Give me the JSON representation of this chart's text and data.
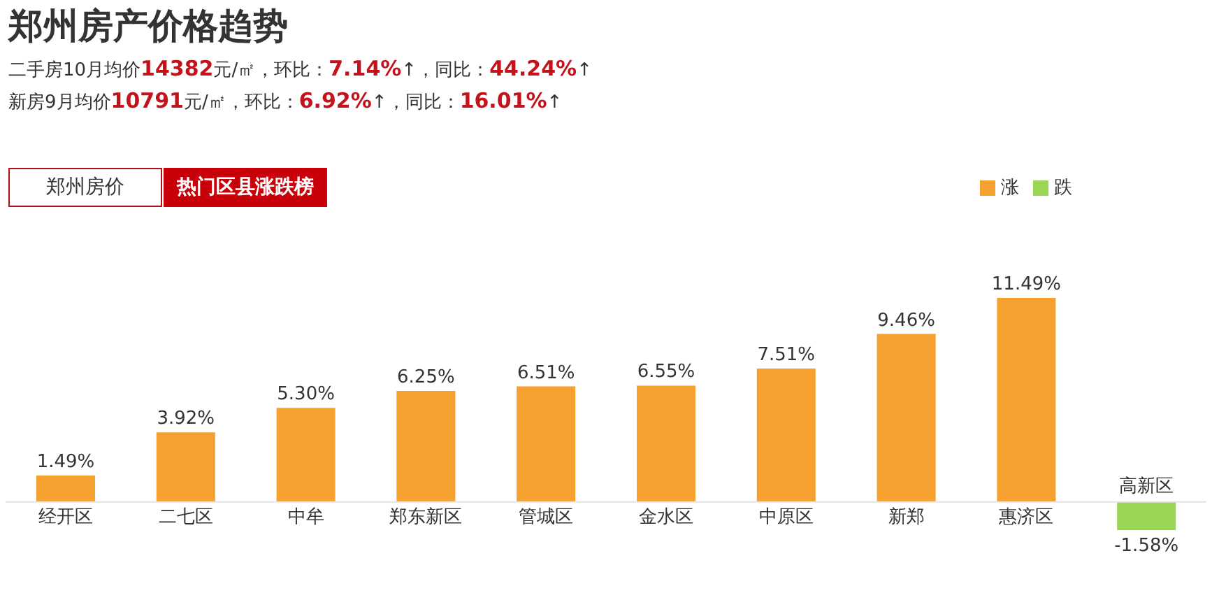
{
  "chart_data": {
    "type": "bar",
    "title": "郑州房产价格趋势",
    "subtitle": "二手房10月均价14382元/㎡，环比：7.14%↑，同比：44.24%↑",
    "annotations": [
      "新房9月均价10791元/㎡，环比：6.92%↑，同比：16.01%↑",
      "郑州房价",
      "热门区县涨跌榜"
    ],
    "categories": [
      "经开区",
      "二七区",
      "中牟",
      "郑东新区",
      "管城区",
      "金水区",
      "中原区",
      "新郑",
      "惠济区",
      "高新区"
    ],
    "stacked": true,
    "series": [
      {
        "name": "涨",
        "color": "#f5a02f",
        "values": [
          1.49,
          3.92,
          5.3,
          6.25,
          6.51,
          6.55,
          7.51,
          9.46,
          11.49,
          null
        ],
        "value_labels": [
          "1.49%",
          "3.92%",
          "5.30%",
          "6.25%",
          "6.51%",
          "6.55%",
          "7.51%",
          "9.46%",
          "11.49%",
          null
        ]
      },
      {
        "name": "跌",
        "color": "#99d653",
        "values": [
          null,
          null,
          null,
          null,
          null,
          null,
          null,
          null,
          null,
          -1.58
        ],
        "value_labels": [
          null,
          null,
          null,
          null,
          null,
          null,
          null,
          null,
          null,
          "-1.58%"
        ]
      }
    ],
    "legend": "top right",
    "grid": false
  }
}
